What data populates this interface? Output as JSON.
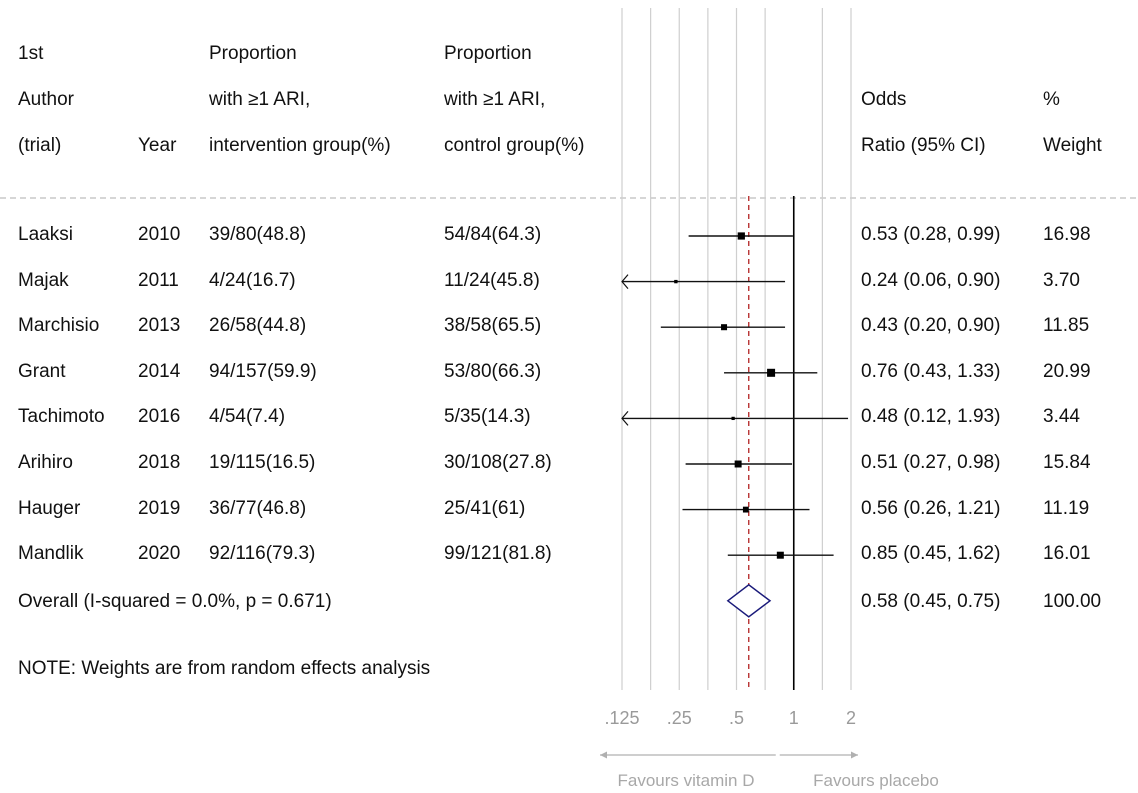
{
  "headers": {
    "col1": [
      "1st",
      "Author",
      "(trial)"
    ],
    "col2": [
      "Year"
    ],
    "col3": [
      "Proportion",
      "with ≥1 ARI,",
      "intervention group(%)"
    ],
    "col4": [
      "Proportion",
      "with ≥1 ARI,",
      "control group(%)"
    ],
    "col5": [
      "Odds",
      "Ratio (95% CI)"
    ],
    "col6": [
      "%",
      "Weight"
    ]
  },
  "chart_data": {
    "type": "forest",
    "x_scale": "log",
    "x_ticks": [
      0.125,
      0.25,
      0.5,
      1,
      2
    ],
    "x_tick_labels": [
      ".125",
      ".25",
      ".5",
      "1",
      "2"
    ],
    "null_line": 1,
    "pooled_line": 0.58,
    "xlim": [
      0.125,
      2
    ],
    "studies": [
      {
        "author": "Laaksi",
        "year": "2010",
        "intervention": "39/80(48.8)",
        "control": "54/84(64.3)",
        "or": 0.53,
        "lo": 0.28,
        "hi": 0.99,
        "or_text": "0.53 (0.28, 0.99)",
        "weight": "16.98"
      },
      {
        "author": "Majak",
        "year": "2011",
        "intervention": "4/24(16.7)",
        "control": "11/24(45.8)",
        "or": 0.24,
        "lo": 0.06,
        "hi": 0.9,
        "or_text": "0.24 (0.06, 0.90)",
        "weight": "3.70"
      },
      {
        "author": "Marchisio",
        "year": "2013",
        "intervention": "26/58(44.8)",
        "control": "38/58(65.5)",
        "or": 0.43,
        "lo": 0.2,
        "hi": 0.9,
        "or_text": "0.43 (0.20, 0.90)",
        "weight": "11.85"
      },
      {
        "author": "Grant",
        "year": "2014",
        "intervention": "94/157(59.9)",
        "control": "53/80(66.3)",
        "or": 0.76,
        "lo": 0.43,
        "hi": 1.33,
        "or_text": "0.76 (0.43, 1.33)",
        "weight": "20.99"
      },
      {
        "author": "Tachimoto",
        "year": "2016",
        "intervention": "4/54(7.4)",
        "control": "5/35(14.3)",
        "or": 0.48,
        "lo": 0.12,
        "hi": 1.93,
        "or_text": "0.48 (0.12, 1.93)",
        "weight": "3.44"
      },
      {
        "author": "Arihiro",
        "year": "2018",
        "intervention": "19/115(16.5)",
        "control": "30/108(27.8)",
        "or": 0.51,
        "lo": 0.27,
        "hi": 0.98,
        "or_text": "0.51 (0.27, 0.98)",
        "weight": "15.84"
      },
      {
        "author": "Hauger",
        "year": "2019",
        "intervention": "36/77(46.8)",
        "control": "25/41(61)",
        "or": 0.56,
        "lo": 0.26,
        "hi": 1.21,
        "or_text": "0.56 (0.26, 1.21)",
        "weight": "11.19"
      },
      {
        "author": "Mandlik",
        "year": "2020",
        "intervention": "92/116(79.3)",
        "control": "99/121(81.8)",
        "or": 0.85,
        "lo": 0.45,
        "hi": 1.62,
        "or_text": "0.85 (0.45, 1.62)",
        "weight": "16.01"
      }
    ],
    "overall": {
      "label": "Overall  (I-squared = 0.0%, p = 0.671)",
      "or": 0.58,
      "lo": 0.45,
      "hi": 0.75,
      "or_text": "0.58 (0.45, 0.75)",
      "weight": "100.00"
    },
    "note": "NOTE: Weights are from random effects analysis",
    "favours_left": "Favours vitamin D",
    "favours_right": "Favours placebo",
    "colors": {
      "diamond": "#1a1a7a",
      "pooled_line": "#b22222",
      "grid": "#cfcfcf",
      "ci": "#111111"
    }
  }
}
